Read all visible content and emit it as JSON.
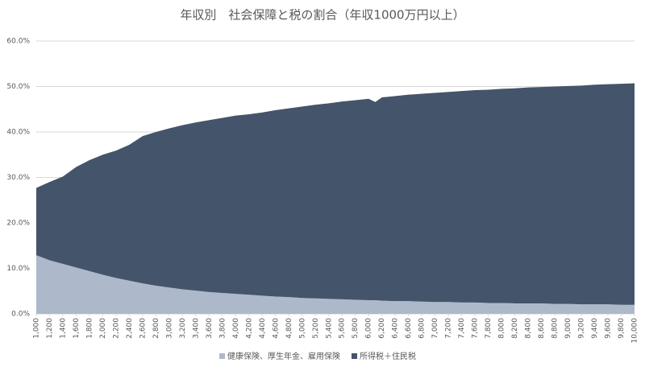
{
  "chart_data": {
    "type": "stacked-area",
    "title": "年収別　社会保障と税の割合（年収1000万円以上）",
    "x": [
      1000,
      1200,
      1400,
      1600,
      1800,
      2000,
      2200,
      2400,
      2600,
      2800,
      3000,
      3200,
      3400,
      3600,
      3800,
      4000,
      4200,
      4400,
      4600,
      4800,
      5000,
      5200,
      5400,
      5600,
      5800,
      6000,
      6100,
      6200,
      6400,
      6600,
      6800,
      7000,
      7200,
      7400,
      7600,
      7800,
      8000,
      8200,
      8400,
      8600,
      8800,
      9000,
      9200,
      9400,
      9600,
      9800,
      10000
    ],
    "series": [
      {
        "name": "健康保険、厚生年金、雇用保険",
        "color": "#adb9ca",
        "values": [
          12.9,
          11.8,
          11.0,
          10.2,
          9.4,
          8.6,
          7.9,
          7.3,
          6.7,
          6.2,
          5.8,
          5.4,
          5.1,
          4.8,
          4.6,
          4.4,
          4.2,
          4.0,
          3.8,
          3.7,
          3.5,
          3.4,
          3.3,
          3.2,
          3.1,
          3.0,
          3.0,
          2.9,
          2.8,
          2.8,
          2.7,
          2.6,
          2.6,
          2.5,
          2.5,
          2.4,
          2.4,
          2.3,
          2.3,
          2.3,
          2.2,
          2.2,
          2.1,
          2.1,
          2.1,
          2.0,
          2.0
        ]
      },
      {
        "name": "所得税＋住民税",
        "color": "#44546a",
        "values": [
          14.8,
          17.2,
          19.2,
          22.1,
          24.4,
          26.4,
          28.0,
          29.9,
          32.4,
          33.8,
          35.0,
          36.1,
          37.0,
          37.8,
          38.5,
          39.2,
          39.7,
          40.3,
          41.0,
          41.5,
          42.1,
          42.6,
          43.0,
          43.5,
          43.9,
          44.3,
          43.6,
          44.7,
          45.1,
          45.4,
          45.7,
          46.0,
          46.2,
          46.5,
          46.7,
          46.9,
          47.1,
          47.3,
          47.5,
          47.6,
          47.8,
          47.9,
          48.1,
          48.3,
          48.4,
          48.6,
          48.7
        ]
      }
    ],
    "xlim": [
      1000,
      10000
    ],
    "xticks": [
      {
        "value": 1000,
        "label": "1,000"
      },
      {
        "value": 1200,
        "label": "1,200"
      },
      {
        "value": 1400,
        "label": "1,400"
      },
      {
        "value": 1600,
        "label": "1,600"
      },
      {
        "value": 1800,
        "label": "1,800"
      },
      {
        "value": 2000,
        "label": "2,000"
      },
      {
        "value": 2200,
        "label": "2,200"
      },
      {
        "value": 2400,
        "label": "2,400"
      },
      {
        "value": 2600,
        "label": "2,600"
      },
      {
        "value": 2800,
        "label": "2,800"
      },
      {
        "value": 3000,
        "label": "3,000"
      },
      {
        "value": 3200,
        "label": "3,200"
      },
      {
        "value": 3400,
        "label": "3,400"
      },
      {
        "value": 3600,
        "label": "3,600"
      },
      {
        "value": 3800,
        "label": "3,800"
      },
      {
        "value": 4000,
        "label": "4,000"
      },
      {
        "value": 4200,
        "label": "4,200"
      },
      {
        "value": 4400,
        "label": "4,400"
      },
      {
        "value": 4600,
        "label": "4,600"
      },
      {
        "value": 4800,
        "label": "4,800"
      },
      {
        "value": 5000,
        "label": "5,000"
      },
      {
        "value": 5200,
        "label": "5,200"
      },
      {
        "value": 5400,
        "label": "5,400"
      },
      {
        "value": 5600,
        "label": "5,600"
      },
      {
        "value": 5800,
        "label": "5,800"
      },
      {
        "value": 6000,
        "label": "6,000"
      },
      {
        "value": 6200,
        "label": "6,200"
      },
      {
        "value": 6400,
        "label": "6,400"
      },
      {
        "value": 6600,
        "label": "6,600"
      },
      {
        "value": 6800,
        "label": "6,800"
      },
      {
        "value": 7000,
        "label": "7,000"
      },
      {
        "value": 7200,
        "label": "7,200"
      },
      {
        "value": 7400,
        "label": "7,400"
      },
      {
        "value": 7600,
        "label": "7,600"
      },
      {
        "value": 7800,
        "label": "7,800"
      },
      {
        "value": 8000,
        "label": "8,000"
      },
      {
        "value": 8200,
        "label": "8,200"
      },
      {
        "value": 8400,
        "label": "8,400"
      },
      {
        "value": 8600,
        "label": "8,600"
      },
      {
        "value": 8800,
        "label": "8,800"
      },
      {
        "value": 9000,
        "label": "9,000"
      },
      {
        "value": 9200,
        "label": "9,200"
      },
      {
        "value": 9400,
        "label": "9,400"
      },
      {
        "value": 9600,
        "label": "9,600"
      },
      {
        "value": 9800,
        "label": "9,800"
      },
      {
        "value": 10000,
        "label": "10,000"
      }
    ],
    "ylim": [
      0,
      60
    ],
    "yticks": [
      {
        "value": 0,
        "label": "0.0%"
      },
      {
        "value": 10,
        "label": "10.0%"
      },
      {
        "value": 20,
        "label": "20.0%"
      },
      {
        "value": 30,
        "label": "30.0%"
      },
      {
        "value": 40,
        "label": "40.0%"
      },
      {
        "value": 50,
        "label": "50.0%"
      },
      {
        "value": 60,
        "label": "60.0%"
      }
    ],
    "grid": true,
    "legend": "bottom"
  }
}
